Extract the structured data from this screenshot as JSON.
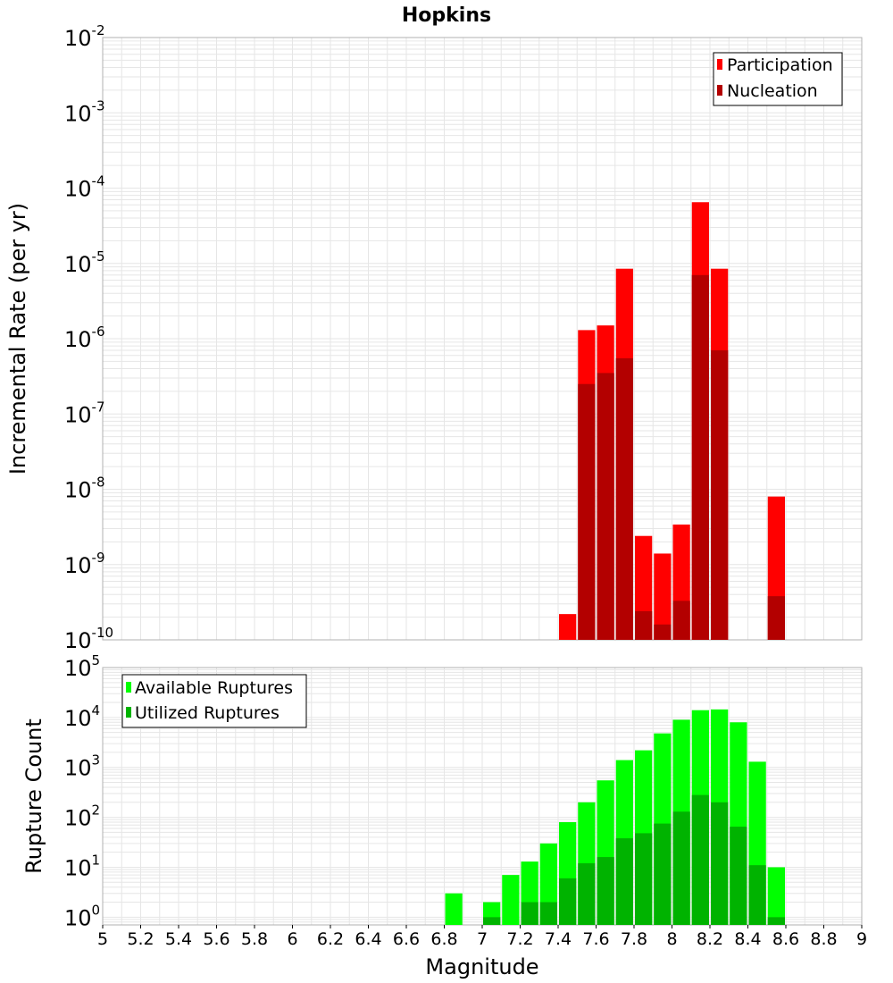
{
  "title": "Hopkins",
  "colors": {
    "participation": "#ff0000",
    "nucleation": "#b30000",
    "available": "#00ff00",
    "utilized": "#00b300",
    "grid": "#e6e6e6",
    "frame": "#b0b0b0"
  },
  "chart_data": [
    {
      "type": "bar",
      "title": "Hopkins",
      "xlabel": "Magnitude",
      "ylabel": "Incremental Rate (per yr)",
      "yscale": "log",
      "ylim": [
        1e-10,
        0.01
      ],
      "xlim": [
        5,
        9
      ],
      "y_tick_labels": [
        {
          "base": "10",
          "exp": "-10"
        },
        {
          "base": "10",
          "exp": "-9"
        },
        {
          "base": "10",
          "exp": "-8"
        },
        {
          "base": "10",
          "exp": "-7"
        },
        {
          "base": "10",
          "exp": "-6"
        },
        {
          "base": "10",
          "exp": "-5"
        },
        {
          "base": "10",
          "exp": "-4"
        },
        {
          "base": "10",
          "exp": "-3"
        },
        {
          "base": "10",
          "exp": "-2"
        }
      ],
      "legend": [
        "Participation",
        "Nucleation"
      ],
      "legend_position": "top-right",
      "grid": true,
      "series": [
        {
          "name": "Participation",
          "x": [
            7.45,
            7.55,
            7.65,
            7.75,
            7.85,
            7.95,
            8.05,
            8.15,
            8.25,
            8.55
          ],
          "values": [
            2.2e-10,
            1.3e-06,
            1.5e-06,
            8.5e-06,
            2.4e-09,
            1.4e-09,
            3.4e-09,
            6.5e-05,
            8.5e-06,
            8e-09
          ]
        },
        {
          "name": "Nucleation",
          "x": [
            7.55,
            7.65,
            7.75,
            7.85,
            7.95,
            8.05,
            8.15,
            8.25,
            8.55
          ],
          "values": [
            2.5e-07,
            3.5e-07,
            5.5e-07,
            2.4e-10,
            1.6e-10,
            3.3e-10,
            7e-06,
            7e-07,
            3.8e-10
          ]
        }
      ]
    },
    {
      "type": "bar",
      "xlabel": "Magnitude",
      "ylabel": "Rupture Count",
      "yscale": "log",
      "ylim": [
        0.7,
        100000
      ],
      "xlim": [
        5,
        9
      ],
      "x_ticks": [
        "5",
        "5.2",
        "5.4",
        "5.6",
        "5.8",
        "6",
        "6.2",
        "6.4",
        "6.6",
        "6.8",
        "7",
        "7.2",
        "7.4",
        "7.6",
        "7.8",
        "8",
        "8.2",
        "8.4",
        "8.6",
        "8.8",
        "9"
      ],
      "y_tick_labels": [
        {
          "base": "10",
          "exp": "0"
        },
        {
          "base": "10",
          "exp": "1"
        },
        {
          "base": "10",
          "exp": "2"
        },
        {
          "base": "10",
          "exp": "3"
        },
        {
          "base": "10",
          "exp": "4"
        },
        {
          "base": "10",
          "exp": "5"
        }
      ],
      "legend": [
        "Available Ruptures",
        "Utilized Ruptures"
      ],
      "legend_position": "top-left",
      "grid": true,
      "series": [
        {
          "name": "Available Ruptures",
          "x": [
            6.85,
            7.05,
            7.15,
            7.25,
            7.35,
            7.45,
            7.55,
            7.65,
            7.75,
            7.85,
            7.95,
            8.05,
            8.15,
            8.25,
            8.35,
            8.45,
            8.55
          ],
          "values": [
            3,
            2,
            7,
            13,
            30,
            80,
            200,
            550,
            1400,
            2200,
            4800,
            9000,
            14000,
            14500,
            8000,
            1300,
            10
          ]
        },
        {
          "name": "Utilized Ruptures",
          "x": [
            7.05,
            7.25,
            7.35,
            7.45,
            7.55,
            7.65,
            7.75,
            7.85,
            7.95,
            8.05,
            8.15,
            8.25,
            8.35,
            8.45,
            8.55
          ],
          "values": [
            1,
            2,
            2,
            6,
            12,
            16,
            38,
            48,
            75,
            130,
            280,
            200,
            65,
            11,
            1
          ]
        }
      ]
    }
  ]
}
